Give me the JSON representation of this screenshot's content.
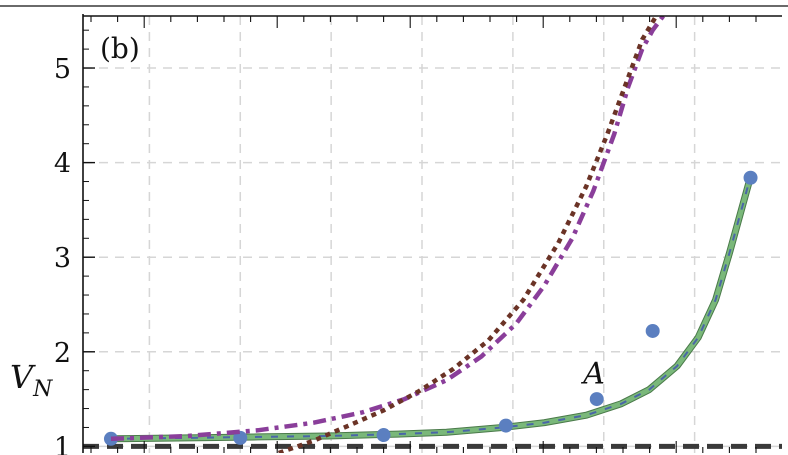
{
  "chart_data": {
    "type": "line",
    "panel_label": "(b)",
    "ylabel_main": "V",
    "ylabel_sub": "N",
    "ylim": [
      0.93,
      5.55
    ],
    "xlim": [
      0,
      1
    ],
    "yticks": [
      1,
      2,
      3,
      4,
      5
    ],
    "ytick_labels": [
      "1",
      "2",
      "3",
      "4",
      "5"
    ],
    "grid": true,
    "annotations": [
      {
        "text": "A",
        "x": 0.73,
        "y": 1.77
      }
    ],
    "series": [
      {
        "style": "dashed-dark",
        "color": "#3a3a3a",
        "x": [
          0.0,
          1.0
        ],
        "y": [
          1.0,
          1.0
        ]
      },
      {
        "style": "solid-green-blue-dash",
        "color": "#7ab87a",
        "x": [
          0.04,
          0.15,
          0.25,
          0.35,
          0.45,
          0.52,
          0.6,
          0.66,
          0.72,
          0.77,
          0.81,
          0.85,
          0.88,
          0.905,
          0.925,
          0.94,
          0.955
        ],
        "y": [
          1.08,
          1.09,
          1.1,
          1.11,
          1.13,
          1.15,
          1.2,
          1.25,
          1.33,
          1.45,
          1.6,
          1.85,
          2.15,
          2.55,
          3.05,
          3.45,
          3.85
        ]
      },
      {
        "style": "points",
        "color": "#5b7fc0",
        "x": [
          0.04,
          0.225,
          0.43,
          0.605,
          0.735,
          0.815,
          0.955
        ],
        "y": [
          1.08,
          1.09,
          1.12,
          1.22,
          1.5,
          2.22,
          3.84
        ]
      },
      {
        "style": "dash-dot-purple",
        "color": "#8a3e9a",
        "x": [
          0.04,
          0.15,
          0.25,
          0.33,
          0.4,
          0.46,
          0.52,
          0.57,
          0.62,
          0.66,
          0.7,
          0.73,
          0.76,
          0.78,
          0.8,
          0.815,
          0.83
        ],
        "y": [
          1.08,
          1.11,
          1.17,
          1.25,
          1.36,
          1.5,
          1.7,
          1.95,
          2.3,
          2.7,
          3.2,
          3.7,
          4.3,
          4.8,
          5.2,
          5.4,
          5.55
        ]
      },
      {
        "style": "dotted-brown",
        "color": "#6b3326",
        "x": [
          0.28,
          0.33,
          0.38,
          0.43,
          0.48,
          0.53,
          0.58,
          0.63,
          0.68,
          0.72,
          0.75,
          0.78,
          0.8,
          0.82
        ],
        "y": [
          0.93,
          1.06,
          1.22,
          1.38,
          1.58,
          1.82,
          2.12,
          2.55,
          3.15,
          3.75,
          4.3,
          4.9,
          5.3,
          5.55
        ]
      }
    ]
  }
}
